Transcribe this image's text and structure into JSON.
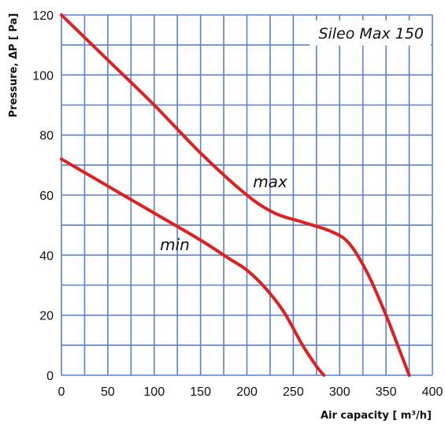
{
  "chart_data": {
    "type": "line",
    "title": "Sileo Max 150",
    "xlabel": "Air capacity  [  m³/h]",
    "ylabel": "Pressure, ΔP [ Pa]",
    "xlim": [
      0,
      400
    ],
    "ylim": [
      0,
      120
    ],
    "x_ticks": [
      0,
      50,
      100,
      150,
      200,
      250,
      300,
      350,
      400
    ],
    "y_ticks": [
      0,
      20,
      40,
      60,
      80,
      100,
      120
    ],
    "grid": true,
    "colors": {
      "series": "#e02020",
      "grid": "#5b80c8",
      "background": "#ffffff"
    },
    "series": [
      {
        "name": "max",
        "x": [
          0,
          50,
          100,
          150,
          200,
          230,
          260,
          290,
          310,
          330,
          350,
          365,
          375
        ],
        "y": [
          120,
          105,
          90,
          74,
          60,
          54,
          51,
          48,
          44,
          34,
          20,
          8,
          0
        ]
      },
      {
        "name": "min",
        "x": [
          0,
          50,
          100,
          150,
          180,
          200,
          220,
          240,
          260,
          275,
          283
        ],
        "y": [
          72,
          63,
          54,
          45,
          39,
          35,
          29,
          21,
          10,
          3,
          0
        ]
      }
    ]
  }
}
